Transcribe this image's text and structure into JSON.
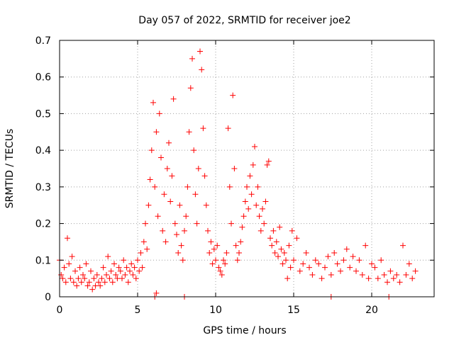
{
  "chart_data": {
    "type": "scatter",
    "title": "Day 057 of 2022, SRMTID for receiver joe2",
    "xlabel": "GPS time / hours",
    "ylabel": "SRMTID / TECUs",
    "xlim": [
      0,
      24
    ],
    "ylim": [
      0,
      0.7
    ],
    "xticks": [
      "0",
      "5",
      "10",
      "15",
      "20"
    ],
    "yticks": [
      "0",
      "0.1",
      "0.2",
      "0.3",
      "0.4",
      "0.5",
      "0.6",
      "0.7"
    ],
    "grid": true,
    "legend": "none",
    "marker": "+",
    "series": [
      {
        "name": "SRMTID",
        "color": "#ff0000",
        "points": [
          [
            0.0,
            0.1
          ],
          [
            0.1,
            0.06
          ],
          [
            0.2,
            0.05
          ],
          [
            0.3,
            0.08
          ],
          [
            0.4,
            0.04
          ],
          [
            0.5,
            0.16
          ],
          [
            0.6,
            0.09
          ],
          [
            0.7,
            0.05
          ],
          [
            0.8,
            0.11
          ],
          [
            0.9,
            0.04
          ],
          [
            1.0,
            0.07
          ],
          [
            1.1,
            0.03
          ],
          [
            1.2,
            0.05
          ],
          [
            1.3,
            0.08
          ],
          [
            1.4,
            0.04
          ],
          [
            1.5,
            0.06
          ],
          [
            1.6,
            0.05
          ],
          [
            1.7,
            0.09
          ],
          [
            1.8,
            0.03
          ],
          [
            1.9,
            0.04
          ],
          [
            2.0,
            0.07
          ],
          [
            2.1,
            0.02
          ],
          [
            2.2,
            0.05
          ],
          [
            2.3,
            0.03
          ],
          [
            2.4,
            0.06
          ],
          [
            2.5,
            0.04
          ],
          [
            2.6,
            0.03
          ],
          [
            2.7,
            0.05
          ],
          [
            2.8,
            0.08
          ],
          [
            2.9,
            0.04
          ],
          [
            3.0,
            0.06
          ],
          [
            3.1,
            0.11
          ],
          [
            3.2,
            0.05
          ],
          [
            3.3,
            0.07
          ],
          [
            3.4,
            0.04
          ],
          [
            3.5,
            0.09
          ],
          [
            3.6,
            0.06
          ],
          [
            3.7,
            0.05
          ],
          [
            3.8,
            0.08
          ],
          [
            3.9,
            0.07
          ],
          [
            4.0,
            0.05
          ],
          [
            4.1,
            0.1
          ],
          [
            4.2,
            0.06
          ],
          [
            4.3,
            0.08
          ],
          [
            4.4,
            0.04
          ],
          [
            4.5,
            0.07
          ],
          [
            4.6,
            0.09
          ],
          [
            4.7,
            0.06
          ],
          [
            4.8,
            0.08
          ],
          [
            4.9,
            0.05
          ],
          [
            5.0,
            0.1
          ],
          [
            5.1,
            0.07
          ],
          [
            5.2,
            0.12
          ],
          [
            5.3,
            0.08
          ],
          [
            5.4,
            0.15
          ],
          [
            5.5,
            0.2
          ],
          [
            5.6,
            0.13
          ],
          [
            5.7,
            0.25
          ],
          [
            5.8,
            0.32
          ],
          [
            5.9,
            0.4
          ],
          [
            6.0,
            0.53
          ],
          [
            6.1,
            0.3
          ],
          [
            6.2,
            0.45
          ],
          [
            6.3,
            0.22
          ],
          [
            6.4,
            0.5
          ],
          [
            6.5,
            0.38
          ],
          [
            6.6,
            0.18
          ],
          [
            6.7,
            0.28
          ],
          [
            6.8,
            0.15
          ],
          [
            6.9,
            0.35
          ],
          [
            7.0,
            0.42
          ],
          [
            7.1,
            0.26
          ],
          [
            7.2,
            0.33
          ],
          [
            7.3,
            0.54
          ],
          [
            7.4,
            0.2
          ],
          [
            7.5,
            0.17
          ],
          [
            7.6,
            0.12
          ],
          [
            7.7,
            0.25
          ],
          [
            7.8,
            0.14
          ],
          [
            7.9,
            0.1
          ],
          [
            8.0,
            0.18
          ],
          [
            8.1,
            0.22
          ],
          [
            8.2,
            0.3
          ],
          [
            8.3,
            0.45
          ],
          [
            8.4,
            0.57
          ],
          [
            8.5,
            0.65
          ],
          [
            8.6,
            0.4
          ],
          [
            8.7,
            0.28
          ],
          [
            8.8,
            0.2
          ],
          [
            8.9,
            0.35
          ],
          [
            9.0,
            0.67
          ],
          [
            9.1,
            0.62
          ],
          [
            9.2,
            0.46
          ],
          [
            9.3,
            0.33
          ],
          [
            9.4,
            0.25
          ],
          [
            9.5,
            0.18
          ],
          [
            9.6,
            0.12
          ],
          [
            9.7,
            0.15
          ],
          [
            9.8,
            0.09
          ],
          [
            9.9,
            0.13
          ],
          [
            10.0,
            0.1
          ],
          [
            10.1,
            0.14
          ],
          [
            10.2,
            0.08
          ],
          [
            10.3,
            0.07
          ],
          [
            10.4,
            0.06
          ],
          [
            10.5,
            0.1
          ],
          [
            10.6,
            0.09
          ],
          [
            10.7,
            0.12
          ],
          [
            10.8,
            0.46
          ],
          [
            10.9,
            0.3
          ],
          [
            11.0,
            0.2
          ],
          [
            11.1,
            0.55
          ],
          [
            11.2,
            0.35
          ],
          [
            11.3,
            0.14
          ],
          [
            11.4,
            0.1
          ],
          [
            11.5,
            0.12
          ],
          [
            11.6,
            0.15
          ],
          [
            11.7,
            0.19
          ],
          [
            11.8,
            0.22
          ],
          [
            11.9,
            0.26
          ],
          [
            12.0,
            0.3
          ],
          [
            12.1,
            0.24
          ],
          [
            12.2,
            0.33
          ],
          [
            12.3,
            0.28
          ],
          [
            12.4,
            0.36
          ],
          [
            12.5,
            0.41
          ],
          [
            12.6,
            0.25
          ],
          [
            12.7,
            0.3
          ],
          [
            12.8,
            0.22
          ],
          [
            12.9,
            0.18
          ],
          [
            13.0,
            0.24
          ],
          [
            13.1,
            0.2
          ],
          [
            13.2,
            0.26
          ],
          [
            13.3,
            0.36
          ],
          [
            13.4,
            0.37
          ],
          [
            13.5,
            0.16
          ],
          [
            13.6,
            0.14
          ],
          [
            13.7,
            0.18
          ],
          [
            13.8,
            0.12
          ],
          [
            13.9,
            0.15
          ],
          [
            14.0,
            0.11
          ],
          [
            14.1,
            0.19
          ],
          [
            14.2,
            0.13
          ],
          [
            14.3,
            0.09
          ],
          [
            14.4,
            0.12
          ],
          [
            14.5,
            0.1
          ],
          [
            14.6,
            0.05
          ],
          [
            14.7,
            0.14
          ],
          [
            14.8,
            0.08
          ],
          [
            14.9,
            0.18
          ],
          [
            15.0,
            0.1
          ],
          [
            15.2,
            0.16
          ],
          [
            15.4,
            0.07
          ],
          [
            15.6,
            0.09
          ],
          [
            15.8,
            0.12
          ],
          [
            16.0,
            0.08
          ],
          [
            16.2,
            0.06
          ],
          [
            16.4,
            0.1
          ],
          [
            16.6,
            0.09
          ],
          [
            16.8,
            0.05
          ],
          [
            17.0,
            0.08
          ],
          [
            17.2,
            0.11
          ],
          [
            17.4,
            0.06
          ],
          [
            17.6,
            0.12
          ],
          [
            17.8,
            0.09
          ],
          [
            18.0,
            0.07
          ],
          [
            18.2,
            0.1
          ],
          [
            18.4,
            0.13
          ],
          [
            18.6,
            0.08
          ],
          [
            18.8,
            0.11
          ],
          [
            19.0,
            0.07
          ],
          [
            19.2,
            0.1
          ],
          [
            19.4,
            0.06
          ],
          [
            19.6,
            0.14
          ],
          [
            19.8,
            0.05
          ],
          [
            20.0,
            0.09
          ],
          [
            20.2,
            0.08
          ],
          [
            20.4,
            0.05
          ],
          [
            20.6,
            0.1
          ],
          [
            20.8,
            0.06
          ],
          [
            21.0,
            0.04
          ],
          [
            21.2,
            0.07
          ],
          [
            21.4,
            0.05
          ],
          [
            21.6,
            0.06
          ],
          [
            21.8,
            0.04
          ],
          [
            22.0,
            0.14
          ],
          [
            22.2,
            0.06
          ],
          [
            22.4,
            0.09
          ],
          [
            22.6,
            0.05
          ],
          [
            22.8,
            0.07
          ],
          [
            6.1,
            0.0
          ],
          [
            6.2,
            0.01
          ],
          [
            8.0,
            0.0
          ],
          [
            17.4,
            0.0
          ],
          [
            21.1,
            0.0
          ]
        ]
      }
    ]
  }
}
